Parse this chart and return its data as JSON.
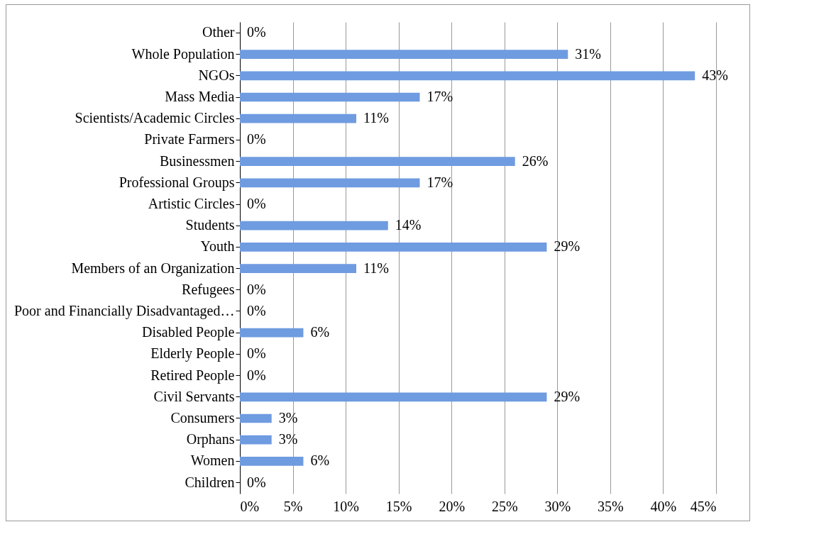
{
  "chart_data": {
    "type": "bar",
    "orientation": "horizontal",
    "categories": [
      "Other",
      "Whole Population",
      "NGOs",
      "Mass Media",
      "Scientists/Academic Circles",
      "Private Farmers",
      "Businessmen",
      "Professional Groups",
      "Artistic Circles",
      "Students",
      "Youth",
      "Members of an Organization",
      "Refugees",
      "Poor and Financially Disadvantaged…",
      "Disabled People",
      "Elderly People",
      "Retired People",
      "Civil Servants",
      "Consumers",
      "Orphans",
      "Women",
      "Children"
    ],
    "values": [
      0,
      31,
      43,
      17,
      11,
      0,
      26,
      17,
      0,
      14,
      29,
      11,
      0,
      0,
      6,
      0,
      0,
      29,
      3,
      3,
      6,
      0
    ],
    "value_labels": [
      "0%",
      "31%",
      "43%",
      "17%",
      "11%",
      "0%",
      "26%",
      "17%",
      "0%",
      "14%",
      "29%",
      "11%",
      "0%",
      "0%",
      "6%",
      "0%",
      "0%",
      "29%",
      "3%",
      "3%",
      "6%",
      "0%"
    ],
    "color": "#6f9be0",
    "xlim": [
      0,
      45
    ],
    "xticks": [
      {
        "value": 0,
        "label": "0%"
      },
      {
        "value": 5,
        "label": "5%"
      },
      {
        "value": 10,
        "label": "10%"
      },
      {
        "value": 15,
        "label": "15%"
      },
      {
        "value": 20,
        "label": "20%"
      },
      {
        "value": 25,
        "label": "25%"
      },
      {
        "value": 30,
        "label": "30%"
      },
      {
        "value": 35,
        "label": "35%"
      },
      {
        "value": 40,
        "label": "40%"
      },
      {
        "value": 45,
        "label": "45%"
      }
    ],
    "grid": "x"
  }
}
